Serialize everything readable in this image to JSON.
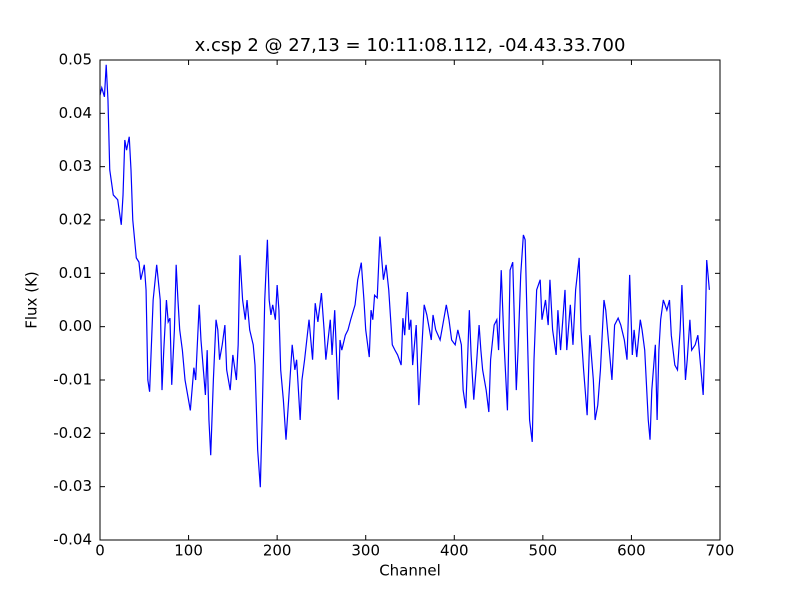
{
  "chart_data": {
    "type": "line",
    "title": "x.csp 2 @ 27,13 = 10:11:08.112, -04.43.33.700",
    "x_label": "Channel",
    "y_label": "Flux (K)",
    "x": [
      0,
      2,
      5,
      7,
      9,
      11,
      15,
      20,
      24,
      26,
      28,
      30,
      33,
      35,
      37,
      41,
      44,
      46,
      50,
      52,
      54,
      56,
      60,
      64,
      68,
      70,
      72,
      75,
      77,
      79,
      81,
      84,
      86,
      88,
      90,
      93,
      96,
      102,
      106,
      108,
      112,
      114,
      119,
      121,
      123,
      125,
      128,
      131,
      133,
      135,
      138,
      141,
      143,
      147,
      150,
      154,
      156,
      158,
      161,
      164,
      166,
      169,
      173,
      175,
      178,
      181,
      183,
      186,
      189,
      191,
      193,
      195,
      198,
      200,
      202,
      204,
      207,
      210,
      213,
      217,
      220,
      222,
      226,
      228,
      231,
      236,
      238,
      240,
      243,
      246,
      250,
      253,
      255,
      260,
      262,
      265,
      269,
      271,
      273,
      277,
      280,
      283,
      288,
      291,
      295,
      298,
      300,
      304,
      306,
      308,
      310,
      313,
      316,
      320,
      323,
      326,
      330,
      333,
      336,
      340,
      342,
      344,
      347,
      349,
      351,
      353,
      357,
      360,
      362,
      366,
      369,
      374,
      376,
      379,
      384,
      387,
      391,
      394,
      397,
      401,
      404,
      408,
      410,
      413,
      417,
      419,
      422,
      425,
      428,
      430,
      432,
      436,
      439,
      441,
      445,
      448,
      450,
      453,
      456,
      460,
      463,
      466,
      470,
      472,
      475,
      478,
      480,
      483,
      485,
      488,
      490,
      493,
      497,
      499,
      503,
      506,
      508,
      511,
      515,
      517,
      520,
      525,
      527,
      531,
      534,
      537,
      541,
      543,
      546,
      550,
      553,
      557,
      559,
      562,
      565,
      569,
      571,
      575,
      578,
      581,
      585,
      588,
      592,
      595,
      598,
      601,
      603,
      606,
      610,
      612,
      615,
      619,
      621,
      623,
      627,
      629,
      631,
      633,
      636,
      640,
      643,
      645,
      649,
      652,
      655,
      657,
      661,
      663,
      666,
      668,
      672,
      675,
      677,
      681,
      683,
      685,
      688
    ],
    "series": [
      {
        "name": "x.csp 2",
        "color": "#0000ff",
        "values": [
          0.0434,
          0.0448,
          0.0431,
          0.0491,
          0.0425,
          0.0294,
          0.0247,
          0.0238,
          0.0191,
          0.0247,
          0.035,
          0.0331,
          0.0356,
          0.0294,
          0.02,
          0.0129,
          0.0121,
          0.0088,
          0.0116,
          0.0069,
          -0.01,
          -0.0122,
          0.005,
          0.0116,
          0.005,
          -0.0119,
          -0.0044,
          0.005,
          0.0009,
          0.0016,
          -0.0109,
          -0.0006,
          0.0116,
          0.005,
          -0.0006,
          -0.0044,
          -0.01,
          -0.0157,
          -0.0077,
          -0.01,
          0.0041,
          -0.0025,
          -0.0128,
          -0.0044,
          -0.0175,
          -0.0241,
          -0.01,
          0.0013,
          -0.0006,
          -0.0062,
          -0.0034,
          0.0003,
          -0.0081,
          -0.0119,
          -0.0053,
          -0.01,
          -0.0034,
          0.0134,
          0.005,
          0.0013,
          0.005,
          -0.0006,
          -0.0034,
          -0.0072,
          -0.0231,
          -0.0301,
          -0.0175,
          0.005,
          0.0163,
          0.005,
          0.0022,
          0.0041,
          0.0013,
          0.0078,
          0.0031,
          -0.0081,
          -0.0137,
          -0.0212,
          -0.0137,
          -0.0034,
          -0.0081,
          -0.0062,
          -0.0175,
          -0.01,
          -0.0062,
          0.0013,
          -0.0025,
          -0.0062,
          0.0044,
          0.0009,
          0.0063,
          -0.0006,
          -0.0062,
          0.0013,
          -0.0053,
          0.0031,
          -0.0137,
          -0.0025,
          -0.0044,
          -0.0016,
          -0.0006,
          0.0013,
          0.0041,
          0.0088,
          0.012,
          0.005,
          -0.0006,
          -0.0057,
          0.0031,
          0.0013,
          0.0059,
          0.0054,
          0.0169,
          0.0088,
          0.0116,
          0.0069,
          -0.0034,
          -0.0044,
          -0.0053,
          -0.0072,
          0.0016,
          -0.0016,
          0.0065,
          -0.0006,
          0.0013,
          -0.0072,
          0.0003,
          -0.0147,
          -0.0081,
          0.0041,
          0.0022,
          -0.0025,
          0.0022,
          -0.0006,
          -0.0025,
          0.0003,
          0.0041,
          0.0013,
          -0.0025,
          -0.0034,
          -0.0006,
          -0.0034,
          -0.0119,
          -0.0153,
          0.0031,
          -0.0053,
          -0.0137,
          -0.0072,
          0.0003,
          -0.0044,
          -0.0081,
          -0.0119,
          -0.016,
          -0.0062,
          0.0003,
          0.0013,
          -0.0044,
          0.0106,
          -0.0025,
          -0.0157,
          0.0106,
          0.0121,
          -0.0119,
          -0.0044,
          0.0097,
          0.0172,
          0.0163,
          -0.0044,
          -0.0175,
          -0.0216,
          -0.0062,
          0.0069,
          0.0088,
          0.0013,
          0.005,
          0.0003,
          0.0088,
          -0.0006,
          -0.0053,
          0.0031,
          -0.0044,
          0.0069,
          -0.0044,
          0.0041,
          -0.0034,
          0.0069,
          0.0129,
          -0.0006,
          -0.0081,
          -0.0166,
          -0.0016,
          -0.01,
          -0.0175,
          -0.0147,
          -0.0081,
          0.005,
          0.0031,
          -0.0044,
          -0.01,
          0.0003,
          0.0016,
          0.0003,
          -0.0025,
          -0.0062,
          0.0097,
          -0.0053,
          -0.0006,
          -0.0057,
          0.0013,
          -0.0006,
          -0.0044,
          -0.0175,
          -0.0212,
          -0.0119,
          -0.0034,
          -0.0175,
          -0.0044,
          0.0013,
          0.005,
          0.0031,
          0.005,
          -0.0016,
          -0.0072,
          -0.0081,
          -0.0006,
          0.0078,
          -0.01,
          -0.0062,
          0.0013,
          -0.0044,
          -0.0034,
          -0.0016,
          -0.0053,
          -0.0128,
          -0.0025,
          0.0125,
          0.0069
        ]
      }
    ],
    "xlim": [
      0,
      700
    ],
    "xticks": [
      0,
      100,
      200,
      300,
      400,
      500,
      600,
      700
    ],
    "ylim": [
      -0.04,
      0.05
    ],
    "yticks": [
      -0.04,
      -0.03,
      -0.02,
      -0.01,
      {
        "value": 0,
        "label": "0.00"
      },
      0.01,
      0.02,
      0.03,
      0.04,
      0.05
    ]
  }
}
